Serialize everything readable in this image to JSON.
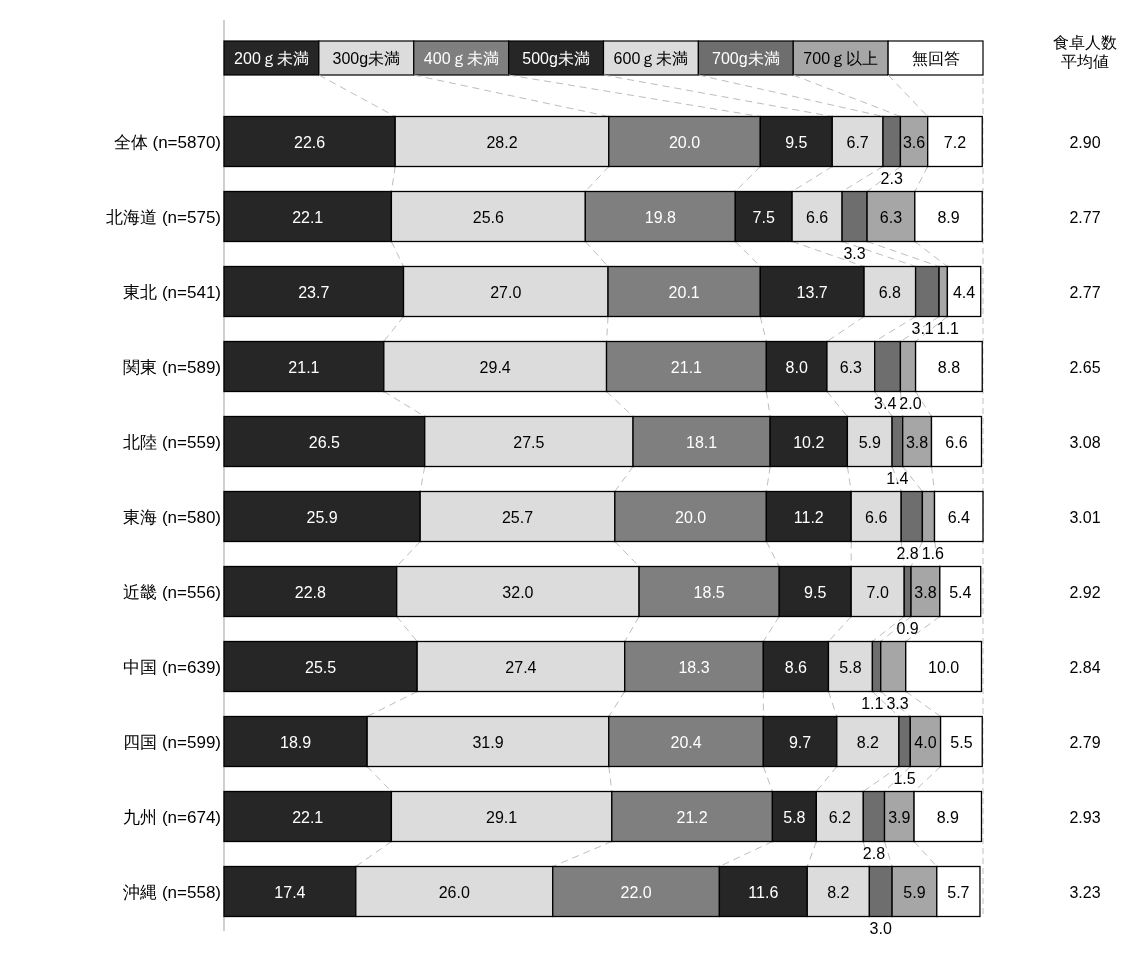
{
  "chart_data": {
    "type": "bar",
    "orientation": "horizontal",
    "stacked": true,
    "legend": "top",
    "tick_labels": "y",
    "categories": [
      "全体 (n=5870)",
      "北海道 (n=575)",
      "東北 (n=541)",
      "関東 (n=589)",
      "北陸 (n=559)",
      "東海 (n=580)",
      "近畿 (n=556)",
      "中国 (n=639)",
      "四国 (n=599)",
      "九州 (n=674)",
      "沖縄 (n=558)"
    ],
    "y2label": "食卓人数平均値",
    "y2_categories": [
      "2.90",
      "2.77",
      "2.77",
      "2.65",
      "3.08",
      "3.01",
      "2.92",
      "2.84",
      "2.79",
      "2.93",
      "3.23"
    ],
    "series": [
      {
        "name": "200ｇ未満",
        "color": "#262626",
        "values": [
          22.6,
          22.1,
          23.7,
          21.1,
          26.5,
          25.9,
          22.8,
          25.5,
          18.9,
          22.1,
          17.4
        ],
        "value_labels": [
          "22.6",
          "22.1",
          "23.7",
          "21.1",
          "26.5",
          "25.9",
          "22.8",
          "25.5",
          "18.9",
          "22.1",
          "17.4"
        ]
      },
      {
        "name": "300g未満",
        "color": "#dcdcdc",
        "values": [
          28.2,
          25.6,
          27.0,
          29.4,
          27.5,
          25.7,
          32.0,
          27.4,
          31.9,
          29.1,
          26.0
        ],
        "value_labels": [
          "28.2",
          "25.6",
          "27.0",
          "29.4",
          "27.5",
          "25.7",
          "32.0",
          "27.4",
          "31.9",
          "29.1",
          "26.0"
        ]
      },
      {
        "name": "400ｇ未満",
        "color": "#7f7f7f",
        "values": [
          20.0,
          19.8,
          20.1,
          21.1,
          18.1,
          20.0,
          18.5,
          18.3,
          20.4,
          21.2,
          22.0
        ],
        "value_labels": [
          "20.0",
          "19.8",
          "20.1",
          "21.1",
          "18.1",
          "20.0",
          "18.5",
          "18.3",
          "20.4",
          "21.2",
          "22.0"
        ]
      },
      {
        "name": "500g未満",
        "color": "#262626",
        "values": [
          9.5,
          7.5,
          13.7,
          8.0,
          10.2,
          11.2,
          9.5,
          8.6,
          9.7,
          5.8,
          11.6
        ],
        "value_labels": [
          "9.5",
          "7.5",
          "13.7",
          "8.0",
          "10.2",
          "11.2",
          "9.5",
          "8.6",
          "9.7",
          "5.8",
          "11.6"
        ]
      },
      {
        "name": "600ｇ未満",
        "color": "#dcdcdc",
        "values": [
          6.7,
          6.6,
          6.8,
          6.3,
          5.9,
          6.6,
          7.0,
          5.8,
          8.2,
          6.2,
          8.2
        ],
        "value_labels": [
          "6.7",
          "6.6",
          "6.8",
          "6.3",
          "5.9",
          "6.6",
          "7.0",
          "5.8",
          "8.2",
          "6.2",
          "8.2"
        ]
      },
      {
        "name": "700g未満",
        "color": "#6e6e6e",
        "values": [
          2.3,
          3.3,
          3.1,
          3.4,
          1.4,
          2.8,
          0.9,
          1.1,
          1.5,
          2.8,
          3.0
        ],
        "value_labels": [
          "2.3",
          "3.3",
          "3.1",
          "3.4",
          "1.4",
          "2.8",
          "0.9",
          "1.1",
          "1.5",
          "2.8",
          "3.0"
        ]
      },
      {
        "name": "700ｇ以上",
        "color": "#a6a6a6",
        "values": [
          3.6,
          6.3,
          1.1,
          2.0,
          3.8,
          1.6,
          3.8,
          3.3,
          4.0,
          3.9,
          5.9
        ],
        "value_labels": [
          "3.6",
          "6.3",
          "1.1",
          "2.0",
          "3.8",
          "1.6",
          "3.8",
          "3.3",
          "4.0",
          "3.9",
          "5.9"
        ]
      },
      {
        "name": "無回答",
        "color": "#ffffff",
        "values": [
          7.2,
          8.9,
          4.4,
          8.8,
          6.6,
          6.4,
          5.4,
          10.0,
          5.5,
          8.9,
          5.7
        ],
        "value_labels": [
          "7.2",
          "8.9",
          "4.4",
          "8.8",
          "6.6",
          "6.4",
          "5.4",
          "10.0",
          "5.5",
          "8.9",
          "5.7"
        ]
      }
    ]
  }
}
